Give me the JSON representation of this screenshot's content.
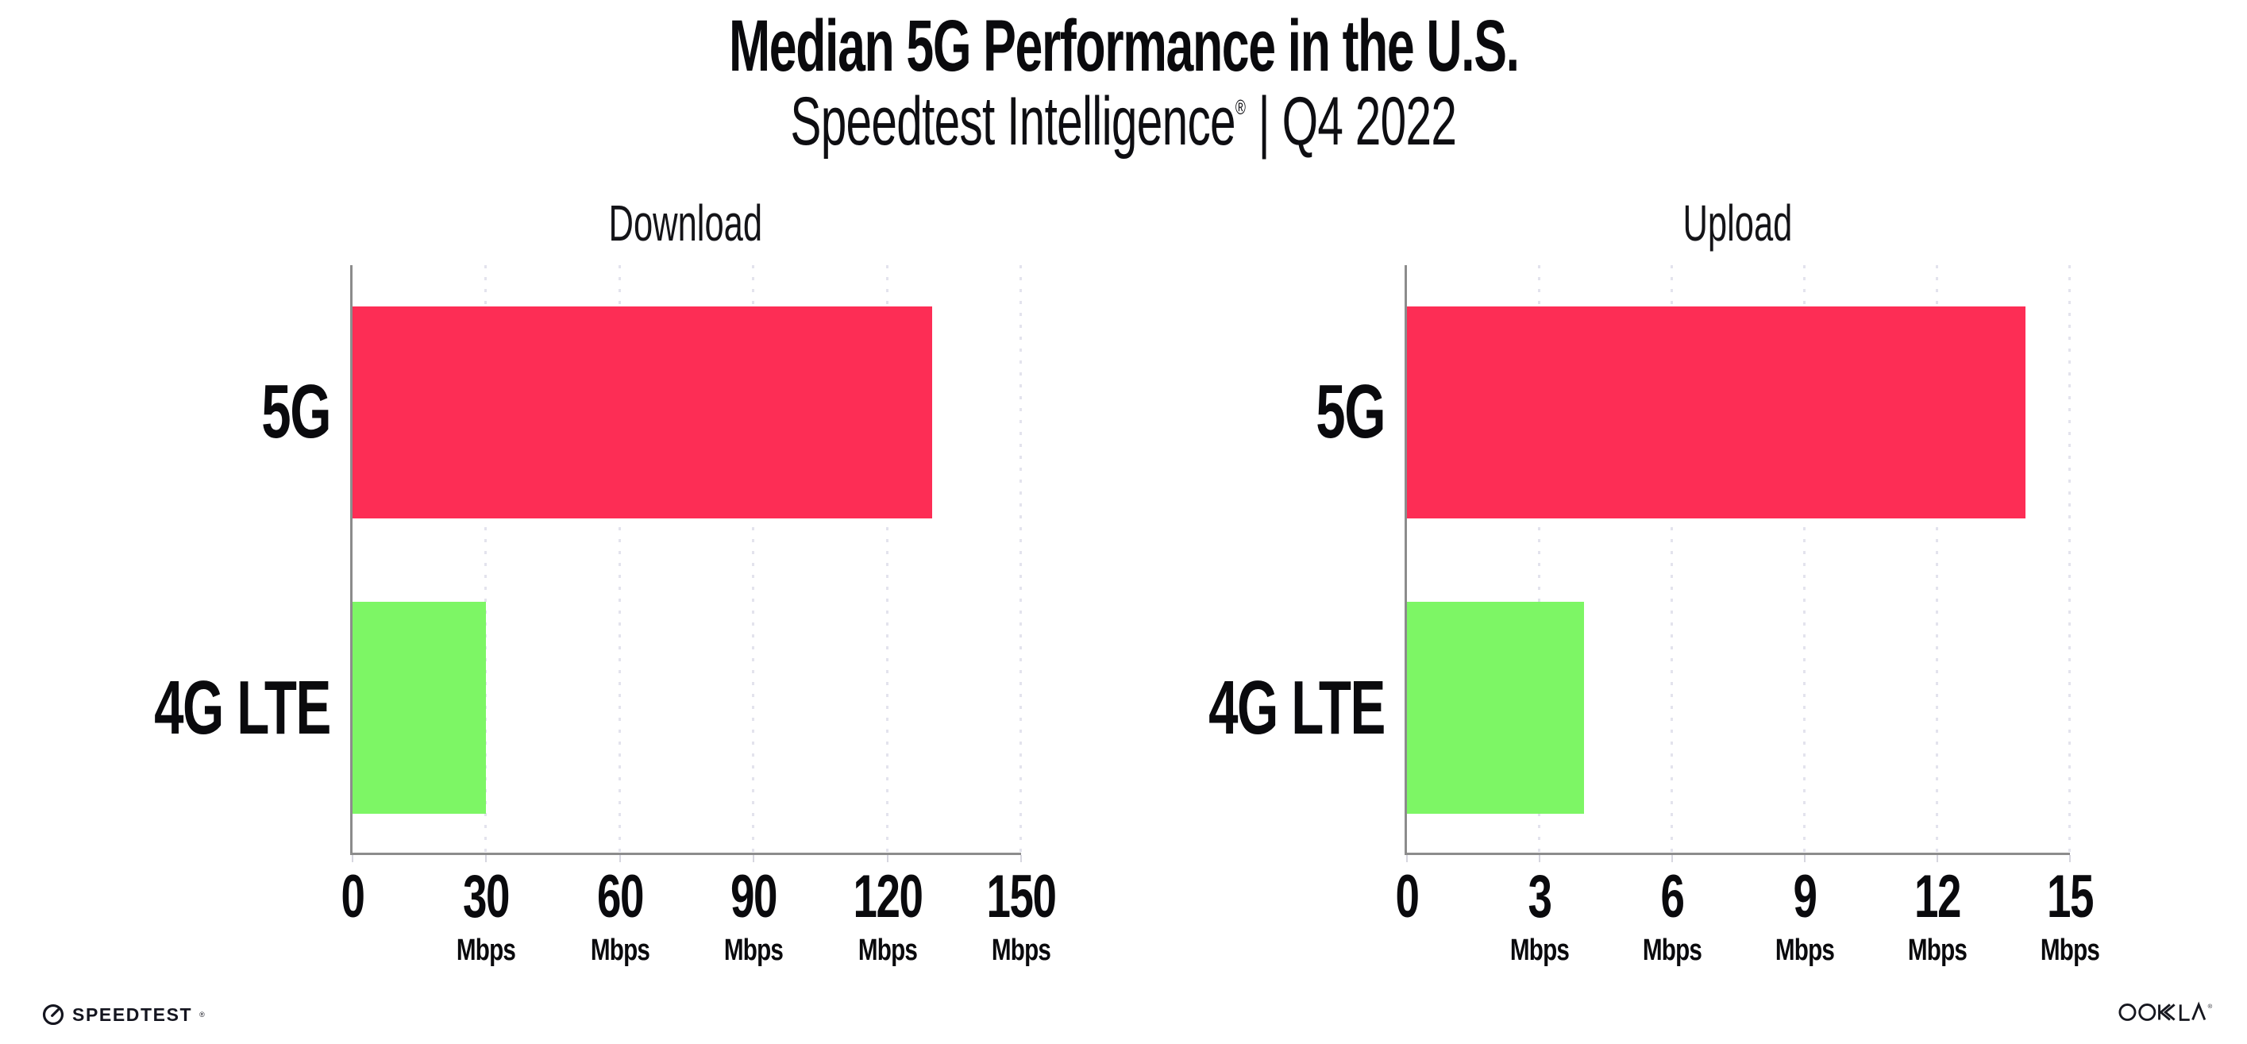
{
  "header": {
    "title": "Median 5G Performance in the U.S.",
    "subtitle_brand": "Speedtest Intelligence",
    "subtitle_mark": "®",
    "subtitle_divider": " | ",
    "subtitle_period": "Q4 2022"
  },
  "footer": {
    "speedtest_label": "SPEEDTEST",
    "speedtest_mark": "®",
    "ookla_label": "OOKLA",
    "ookla_mark": "®"
  },
  "colors": {
    "bar_5g": "#FD2D55",
    "bar_4g_lte": "#7DF665",
    "axis_line": "#8C8C8C",
    "gridline": "#E3E3ED",
    "text": "#0A0A0D"
  },
  "chart_data": [
    {
      "type": "bar",
      "orientation": "horizontal",
      "title": "Download",
      "categories": [
        "5G",
        "4G LTE"
      ],
      "values": [
        130,
        30
      ],
      "unit": "Mbps",
      "xlim": [
        0,
        150
      ],
      "xticks": [
        0,
        30,
        60,
        90,
        120,
        150
      ],
      "xtick_unit": "Mbps",
      "xtick_unit_on_zero": false,
      "bar_colors": [
        "#FD2D55",
        "#7DF665"
      ],
      "grid": "dotted vertical gridline at each tick",
      "legend_position": "none"
    },
    {
      "type": "bar",
      "orientation": "horizontal",
      "title": "Upload",
      "categories": [
        "5G",
        "4G LTE"
      ],
      "values": [
        14,
        4
      ],
      "unit": "Mbps",
      "xlim": [
        0,
        15
      ],
      "xticks": [
        0,
        3,
        6,
        9,
        12,
        15
      ],
      "xtick_unit": "Mbps",
      "xtick_unit_on_zero": false,
      "bar_colors": [
        "#FD2D55",
        "#7DF665"
      ],
      "grid": "dotted vertical gridline at each tick",
      "legend_position": "none"
    }
  ]
}
